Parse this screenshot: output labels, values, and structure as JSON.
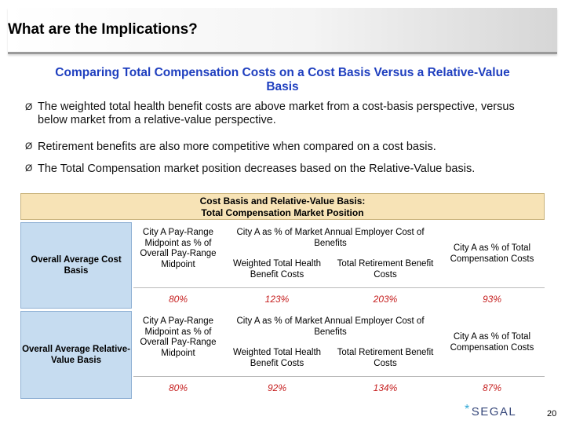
{
  "title": "What are the Implications?",
  "subtitle": "Comparing Total Compensation Costs on a Cost Basis Versus a Relative-Value Basis",
  "bullets": [
    "The weighted total health benefit costs are above market from a cost-basis perspective, versus below market from a relative-value perspective.",
    "Retirement benefits are also more competitive when compared on a cost basis.",
    "The Total Compensation market position decreases based on the Relative-Value basis."
  ],
  "bullet_arrow": "Ø",
  "table": {
    "header_line1": "Cost Basis and Relative-Value Basis:",
    "header_line2": "Total Compensation Market Position",
    "rows": [
      {
        "label": "Overall Average Cost Basis",
        "col1_header": "City A Pay-Range Midpoint as % of Overall Pay-Range Midpoint",
        "group_header": "City A as % of Market Annual Employer Cost of Benefits",
        "health_header": "Weighted Total Health Benefit Costs",
        "retire_header": "Total Retirement Benefit Costs",
        "total_header": "City A as % of Total Compensation Costs",
        "values": {
          "paymid": "80%",
          "health": "123%",
          "retire": "203%",
          "total": "93%"
        }
      },
      {
        "label": "Overall Average Relative-Value Basis",
        "col1_header": "City A Pay-Range Midpoint as % of Overall Pay-Range Midpoint",
        "group_header": "City A as % of Market Annual Employer Cost of Benefits",
        "health_header": "Weighted Total Health Benefit Costs",
        "retire_header": "Total Retirement Benefit Costs",
        "total_header": "City A as % of Total Compensation Costs",
        "values": {
          "paymid": "80%",
          "health": "92%",
          "retire": "134%",
          "total": "87%"
        }
      }
    ]
  },
  "footer": {
    "logo_text": "SEGAL",
    "page_number": "20"
  },
  "colors": {
    "subtitle": "#1f3fbf",
    "values": "#c62020",
    "row_label_bg": "#c6dcf0",
    "header_bg": "#f7e3b6"
  }
}
